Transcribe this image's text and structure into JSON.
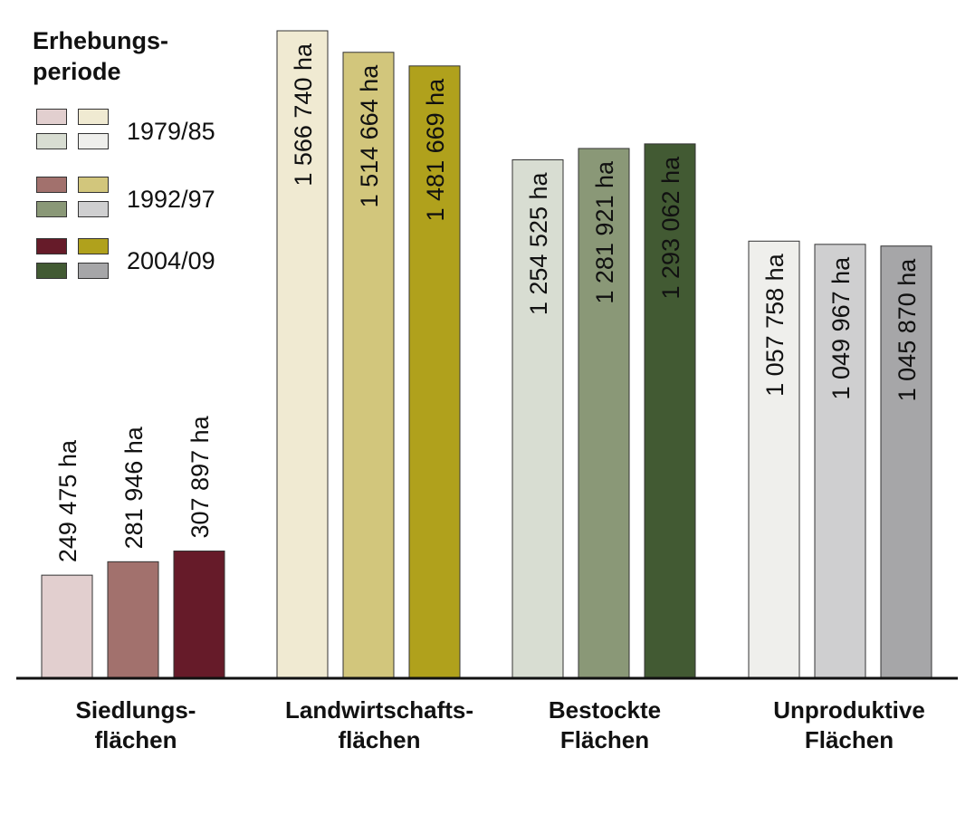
{
  "legend": {
    "title_line1": "Erhebungs-",
    "title_line2": "periode",
    "entries": [
      {
        "label": "1979/85",
        "colors": [
          "#e2cfcf",
          "#f0ead2",
          "#d8ddd2",
          "#efefec"
        ]
      },
      {
        "label": "1992/97",
        "colors": [
          "#a2716d",
          "#d2c67c",
          "#8a9877",
          "#cfcfd0"
        ]
      },
      {
        "label": "2004/09",
        "colors": [
          "#661b29",
          "#b0a11c",
          "#425a33",
          "#a6a6a8"
        ]
      }
    ]
  },
  "chart_data": {
    "type": "bar",
    "unit": "ha",
    "periods": [
      "1979/85",
      "1992/97",
      "2004/09"
    ],
    "categories": [
      {
        "line1": "Siedlungs-",
        "line2": "flächen",
        "values": [
          249475,
          281946,
          307897
        ],
        "labels": [
          "249 475 ha",
          "281 946 ha",
          "307 897 ha"
        ],
        "colors": [
          "#e2cfcf",
          "#a2716d",
          "#661b29"
        ]
      },
      {
        "line1": "Landwirtschafts-",
        "line2": "flächen",
        "values": [
          1566740,
          1514664,
          1481669
        ],
        "labels": [
          "1 566 740 ha",
          "1 514 664 ha",
          "1 481 669 ha"
        ],
        "colors": [
          "#f0ead2",
          "#d2c67c",
          "#b0a11c"
        ]
      },
      {
        "line1": "Bestockte",
        "line2": "Flächen",
        "values": [
          1254525,
          1281921,
          1293062
        ],
        "labels": [
          "1 254 525 ha",
          "1 281 921 ha",
          "1 293 062 ha"
        ],
        "colors": [
          "#d8ddd2",
          "#8a9877",
          "#425a33"
        ]
      },
      {
        "line1": "Unproduktive",
        "line2": "Flächen",
        "values": [
          1057758,
          1049967,
          1045870
        ],
        "labels": [
          "1 057 758 ha",
          "1 049 967 ha",
          "1 045 870 ha"
        ],
        "colors": [
          "#efefec",
          "#cfcfd0",
          "#a6a6a8"
        ]
      }
    ],
    "ylim": [
      0,
      1620000
    ],
    "grid": false,
    "legend_position": "top-left"
  }
}
